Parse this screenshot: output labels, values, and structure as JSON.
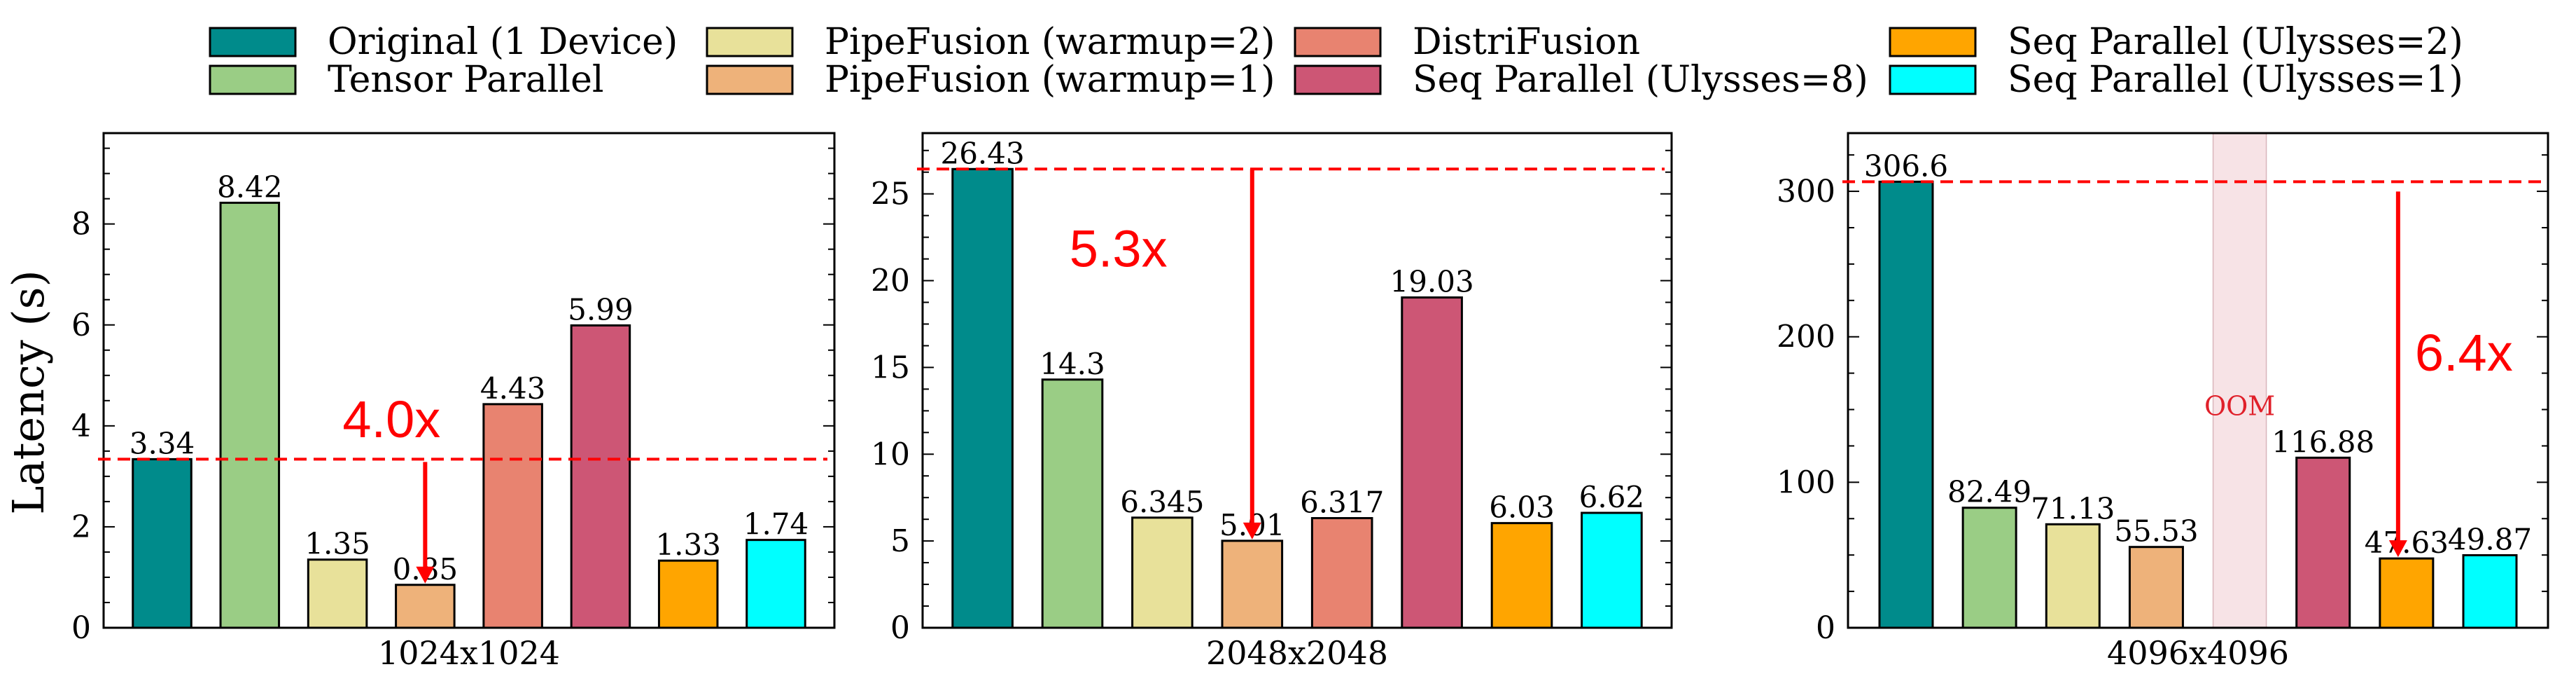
{
  "ylabel": "Latency (s)",
  "legend": [
    {
      "name": "Original (1 Device)",
      "color": "#008b8b"
    },
    {
      "name": "Tensor Parallel",
      "color": "#9acd85"
    },
    {
      "name": "PipeFusion (warmup=2)",
      "color": "#e8e19a"
    },
    {
      "name": "PipeFusion (warmup=1)",
      "color": "#eeb27a"
    },
    {
      "name": "DistriFusion",
      "color": "#e88370"
    },
    {
      "name": "Seq Parallel (Ulysses=8)",
      "color": "#cd5675"
    },
    {
      "name": "Seq Parallel (Ulysses=2)",
      "color": "#ffa500"
    },
    {
      "name": "Seq Parallel (Ulysses=1)",
      "color": "#00ffff"
    }
  ],
  "chart_data": [
    {
      "type": "bar",
      "xlabel": "1024x1024",
      "ylim": [
        0,
        9.8
      ],
      "yticks": [
        0,
        2,
        4,
        6,
        8
      ],
      "categories": [
        "Original (1 Device)",
        "Tensor Parallel",
        "PipeFusion (warmup=2)",
        "PipeFusion (warmup=1)",
        "DistriFusion",
        "Seq Parallel (Ulysses=8)",
        "Seq Parallel (Ulysses=2)",
        "Seq Parallel (Ulysses=1)"
      ],
      "values": [
        3.34,
        8.42,
        1.35,
        0.85,
        4.43,
        5.99,
        1.33,
        1.74
      ],
      "value_labels": [
        "3.34",
        "8.42",
        "1.35",
        "0.85",
        "4.43",
        "5.99",
        "1.33",
        "1.74"
      ],
      "baseline": 3.34,
      "speedup": {
        "label": "4.0x",
        "target_index": 3
      },
      "oom_index": null
    },
    {
      "type": "bar",
      "xlabel": "2048x2048",
      "ylim": [
        0,
        28.5
      ],
      "yticks": [
        0,
        5,
        10,
        15,
        20,
        25
      ],
      "categories": [
        "Original (1 Device)",
        "Tensor Parallel",
        "PipeFusion (warmup=2)",
        "PipeFusion (warmup=1)",
        "DistriFusion",
        "Seq Parallel (Ulysses=8)",
        "Seq Parallel (Ulysses=2)",
        "Seq Parallel (Ulysses=1)"
      ],
      "values": [
        26.43,
        14.3,
        6.345,
        5.01,
        6.317,
        19.03,
        6.03,
        6.62
      ],
      "value_labels": [
        "26.43",
        "14.3",
        "6.345",
        "5.01",
        "6.317",
        "19.03",
        "6.03",
        "6.62"
      ],
      "baseline": 26.43,
      "speedup": {
        "label": "5.3x",
        "target_index": 3
      },
      "oom_index": null
    },
    {
      "type": "bar",
      "xlabel": "4096x4096",
      "ylim": [
        0,
        340
      ],
      "yticks": [
        0,
        100,
        200,
        300
      ],
      "categories": [
        "Original (1 Device)",
        "Tensor Parallel",
        "PipeFusion (warmup=2)",
        "PipeFusion (warmup=1)",
        "DistriFusion",
        "Seq Parallel (Ulysses=8)",
        "Seq Parallel (Ulysses=2)",
        "Seq Parallel (Ulysses=1)"
      ],
      "values": [
        306.6,
        82.49,
        71.13,
        55.53,
        null,
        116.88,
        47.63,
        49.87
      ],
      "value_labels": [
        "306.6",
        "82.49",
        "71.13",
        "55.53",
        "",
        "116.88",
        "47.63",
        "49.87"
      ],
      "baseline": 306.6,
      "speedup": {
        "label": "6.4x",
        "target_index": 6
      },
      "oom_index": 4,
      "oom_label": "OOM"
    }
  ]
}
